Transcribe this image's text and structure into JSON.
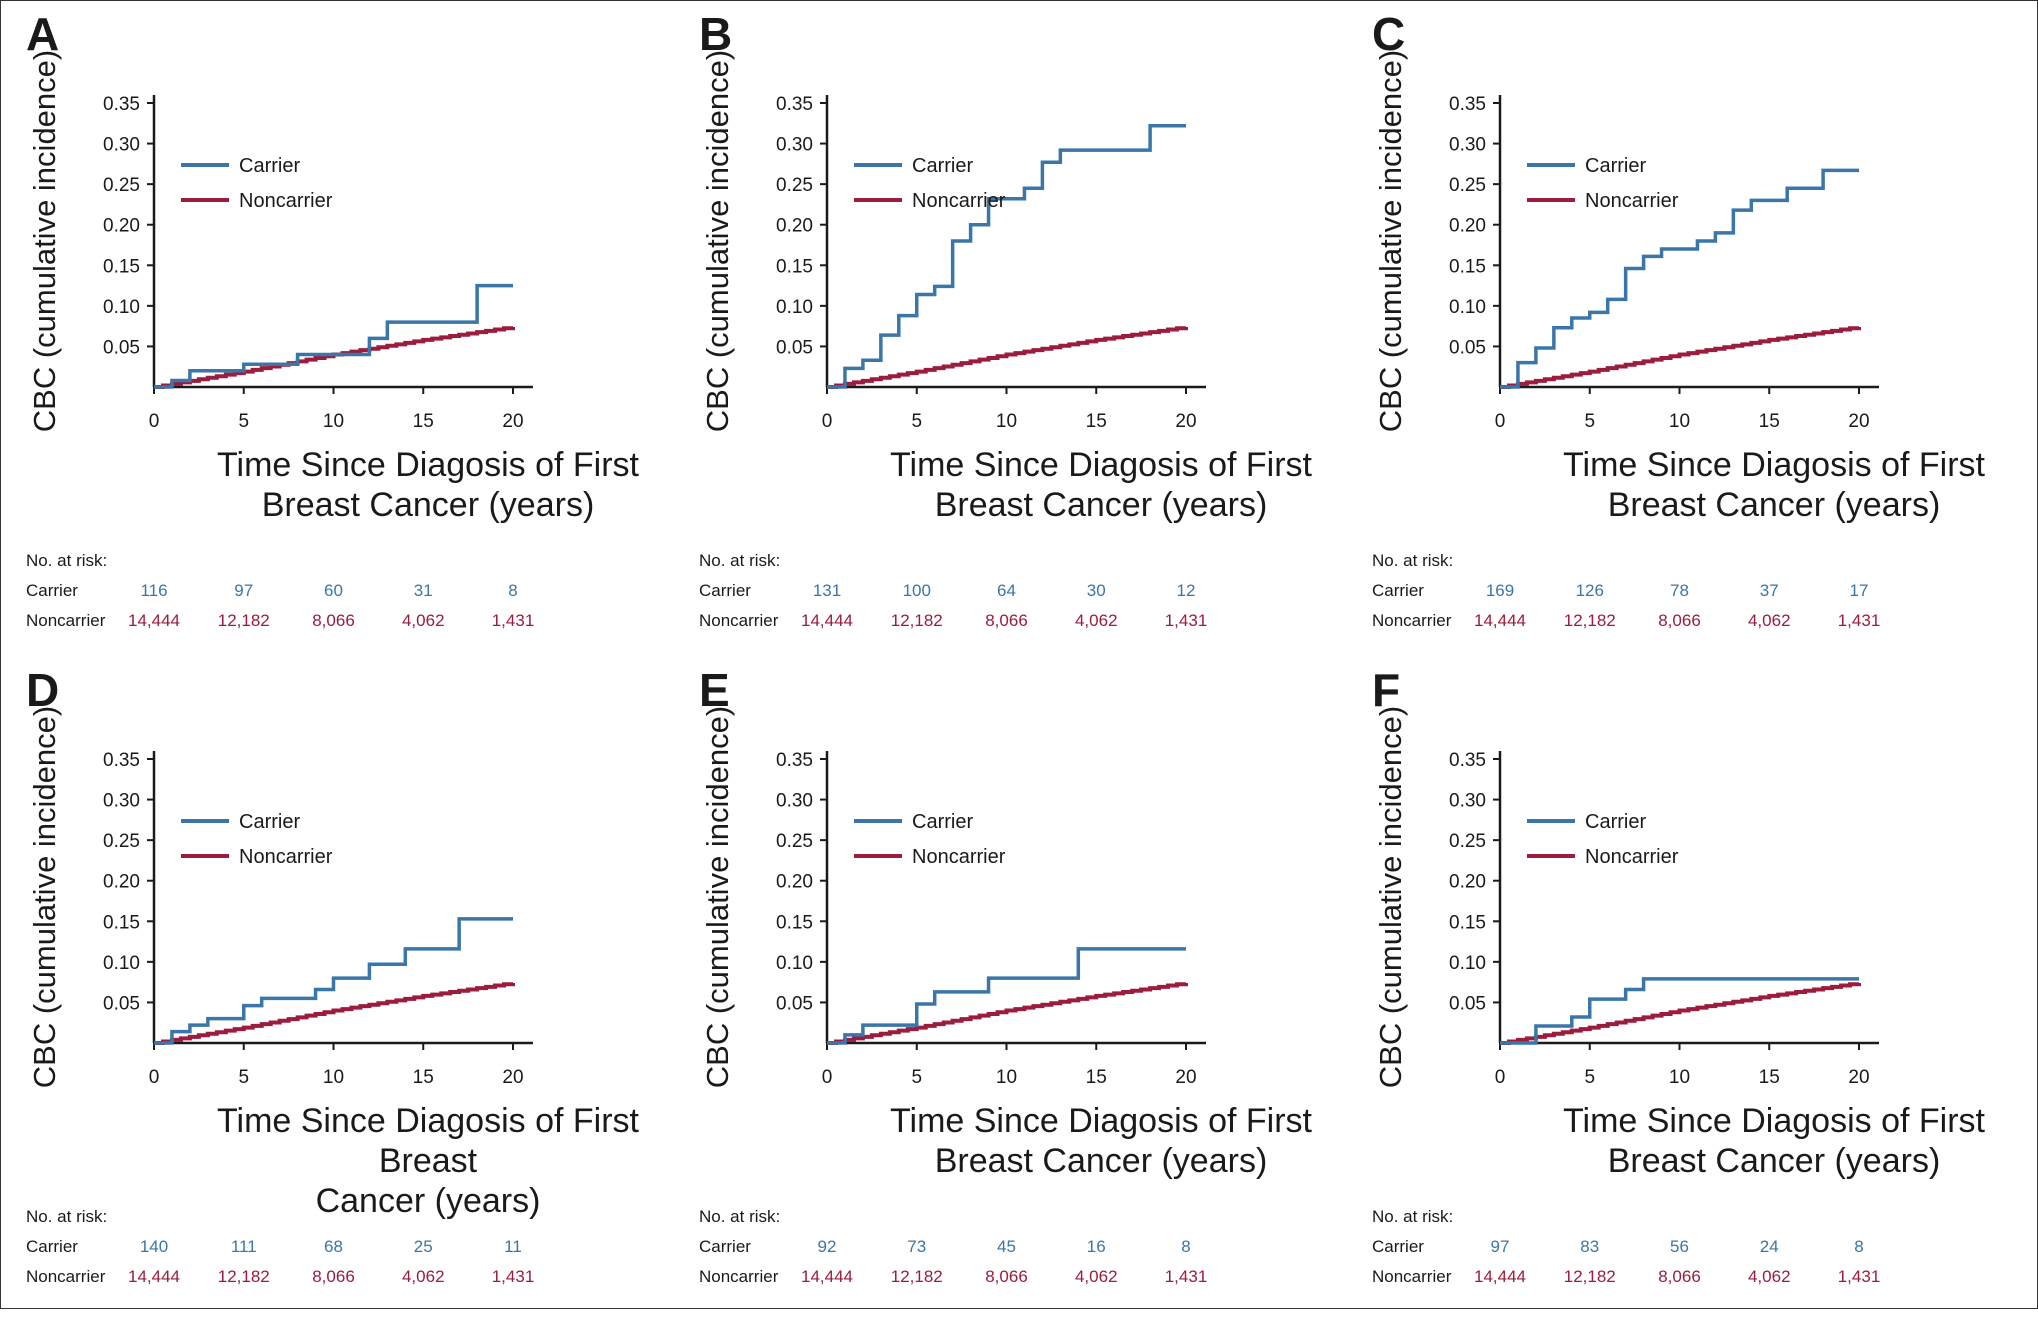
{
  "colors": {
    "carrier": "#3a76a8",
    "noncarrier": "#9b1c3c",
    "axis": "#1a1a1a"
  },
  "shared": {
    "ylabel": "CBC (cumulative incidence)",
    "x_ticks": [
      "0",
      "5",
      "10",
      "15",
      "20"
    ],
    "y_ticks": [
      "0.35",
      "0.30",
      "0.25",
      "0.20",
      "0.15",
      "0.10",
      "0.05"
    ],
    "legend": {
      "carrier": "Carrier",
      "noncarrier": "Noncarrier"
    },
    "risk_title": "No. at risk:",
    "risk_carrier_label": "Carrier",
    "risk_noncarrier_label": "Noncarrier"
  },
  "chart_data": [
    {
      "type": "line",
      "step": true,
      "panel": "A",
      "xlabel_line1": "Time Since Diagosis of First",
      "xlabel_line2": "Breast Cancer (years)",
      "ylabel": "CBC (cumulative incidence)",
      "xlim": [
        0,
        21
      ],
      "ylim": [
        0,
        0.36
      ],
      "legend": "top-left",
      "series": [
        {
          "name": "Carrier",
          "x": [
            0,
            1,
            2,
            5,
            8,
            10,
            12,
            13,
            18,
            20
          ],
          "y": [
            0,
            0.008,
            0.02,
            0.028,
            0.04,
            0.04,
            0.06,
            0.08,
            0.125,
            0.125
          ]
        },
        {
          "name": "Noncarrier",
          "x": [
            0,
            5,
            10,
            15,
            20
          ],
          "y": [
            0,
            0.019,
            0.04,
            0.058,
            0.074
          ]
        }
      ],
      "at_risk": {
        "carrier": [
          "116",
          "97",
          "60",
          "31",
          "8"
        ],
        "noncarrier": [
          "14,444",
          "12,182",
          "8,066",
          "4,062",
          "1,431"
        ]
      }
    },
    {
      "type": "line",
      "step": true,
      "panel": "B",
      "xlabel_line1": "Time Since Diagosis of First",
      "xlabel_line2": "Breast Cancer (years)",
      "ylabel": "CBC (cumulative incidence)",
      "xlim": [
        0,
        21
      ],
      "ylim": [
        0,
        0.36
      ],
      "legend": "top-left",
      "series": [
        {
          "name": "Carrier",
          "x": [
            0,
            1,
            2,
            3,
            4,
            5,
            6,
            7,
            8,
            9,
            11,
            12,
            13,
            18,
            20
          ],
          "y": [
            0,
            0.023,
            0.033,
            0.064,
            0.088,
            0.114,
            0.124,
            0.18,
            0.2,
            0.232,
            0.245,
            0.277,
            0.292,
            0.322,
            0.322
          ]
        },
        {
          "name": "Noncarrier",
          "x": [
            0,
            5,
            10,
            15,
            20
          ],
          "y": [
            0,
            0.019,
            0.04,
            0.058,
            0.074
          ]
        }
      ],
      "at_risk": {
        "carrier": [
          "131",
          "100",
          "64",
          "30",
          "12"
        ],
        "noncarrier": [
          "14,444",
          "12,182",
          "8,066",
          "4,062",
          "1,431"
        ]
      }
    },
    {
      "type": "line",
      "step": true,
      "panel": "C",
      "xlabel_line1": "Time Since Diagosis of First",
      "xlabel_line2": "Breast Cancer (years)",
      "ylabel": "CBC (cumulative incidence)",
      "xlim": [
        0,
        21
      ],
      "ylim": [
        0,
        0.36
      ],
      "legend": "top-left",
      "series": [
        {
          "name": "Carrier",
          "x": [
            0,
            1,
            2,
            3,
            4,
            5,
            6,
            7,
            8,
            9,
            11,
            12,
            13,
            14,
            16,
            18,
            20
          ],
          "y": [
            0,
            0.03,
            0.048,
            0.073,
            0.085,
            0.092,
            0.108,
            0.146,
            0.161,
            0.17,
            0.18,
            0.19,
            0.218,
            0.23,
            0.245,
            0.267,
            0.267
          ]
        },
        {
          "name": "Noncarrier",
          "x": [
            0,
            5,
            10,
            15,
            20
          ],
          "y": [
            0,
            0.019,
            0.04,
            0.058,
            0.074
          ]
        }
      ],
      "at_risk": {
        "carrier": [
          "169",
          "126",
          "78",
          "37",
          "17"
        ],
        "noncarrier": [
          "14,444",
          "12,182",
          "8,066",
          "4,062",
          "1,431"
        ]
      }
    },
    {
      "type": "line",
      "step": true,
      "panel": "D",
      "xlabel_line1": "Time Since Diagosis of First Breast",
      "xlabel_line2": "Cancer (years)",
      "ylabel": "CBC (cumulative incidence)",
      "xlim": [
        0,
        21
      ],
      "ylim": [
        0,
        0.36
      ],
      "legend": "top-left",
      "series": [
        {
          "name": "Carrier",
          "x": [
            0,
            1,
            2,
            3,
            5,
            6,
            9,
            10,
            12,
            14,
            17,
            20
          ],
          "y": [
            0,
            0.014,
            0.022,
            0.03,
            0.046,
            0.055,
            0.066,
            0.08,
            0.097,
            0.116,
            0.153,
            0.153
          ]
        },
        {
          "name": "Noncarrier",
          "x": [
            0,
            5,
            10,
            15,
            20
          ],
          "y": [
            0,
            0.019,
            0.04,
            0.058,
            0.074
          ]
        }
      ],
      "at_risk": {
        "carrier": [
          "140",
          "111",
          "68",
          "25",
          "11"
        ],
        "noncarrier": [
          "14,444",
          "12,182",
          "8,066",
          "4,062",
          "1,431"
        ]
      }
    },
    {
      "type": "line",
      "step": true,
      "panel": "E",
      "xlabel_line1": "Time Since Diagosis of First",
      "xlabel_line2": "Breast Cancer (years)",
      "ylabel": "CBC (cumulative incidence)",
      "xlim": [
        0,
        21
      ],
      "ylim": [
        0,
        0.36
      ],
      "legend": "top-left",
      "series": [
        {
          "name": "Carrier",
          "x": [
            0,
            1,
            2,
            5,
            6,
            9,
            14,
            20
          ],
          "y": [
            0,
            0.01,
            0.022,
            0.048,
            0.063,
            0.08,
            0.116,
            0.116
          ]
        },
        {
          "name": "Noncarrier",
          "x": [
            0,
            5,
            10,
            15,
            20
          ],
          "y": [
            0,
            0.019,
            0.04,
            0.058,
            0.074
          ]
        }
      ],
      "at_risk": {
        "carrier": [
          "92",
          "73",
          "45",
          "16",
          "8"
        ],
        "noncarrier": [
          "14,444",
          "12,182",
          "8,066",
          "4,062",
          "1,431"
        ]
      }
    },
    {
      "type": "line",
      "step": true,
      "panel": "F",
      "xlabel_line1": "Time Since Diagosis of First",
      "xlabel_line2": "Breast Cancer (years)",
      "ylabel": "CBC (cumulative incidence)",
      "xlim": [
        0,
        21
      ],
      "ylim": [
        0,
        0.36
      ],
      "legend": "top-left",
      "series": [
        {
          "name": "Carrier",
          "x": [
            0,
            1,
            2,
            4,
            5,
            7,
            8,
            20
          ],
          "y": [
            0,
            0.0,
            0.021,
            0.032,
            0.054,
            0.066,
            0.079,
            0.079
          ]
        },
        {
          "name": "Noncarrier",
          "x": [
            0,
            5,
            10,
            15,
            20
          ],
          "y": [
            0,
            0.019,
            0.04,
            0.058,
            0.074
          ]
        }
      ],
      "at_risk": {
        "carrier": [
          "97",
          "83",
          "56",
          "24",
          "8"
        ],
        "noncarrier": [
          "14,444",
          "12,182",
          "8,066",
          "4,062",
          "1,431"
        ]
      }
    }
  ]
}
